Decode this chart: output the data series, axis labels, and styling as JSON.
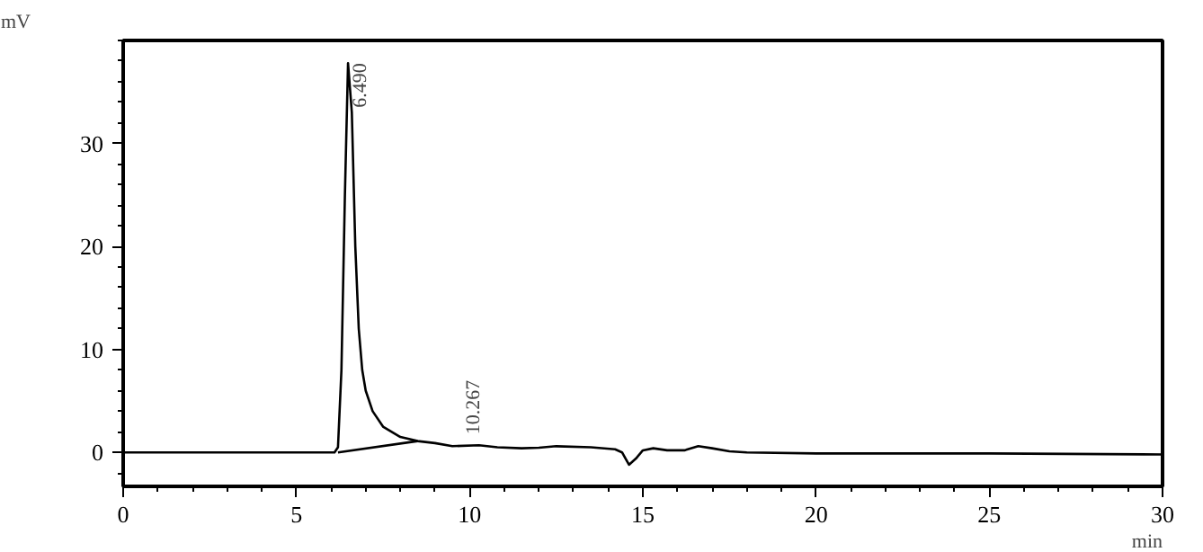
{
  "chart_data": {
    "type": "line",
    "xlabel": "min",
    "ylabel": "mV",
    "xlim": [
      0,
      30
    ],
    "ylim": [
      -3.3,
      40
    ],
    "xticks": [
      0,
      5,
      10,
      15,
      20,
      25,
      30
    ],
    "yticks": [
      0,
      10,
      20,
      30
    ],
    "grid": false,
    "marker": "none",
    "line_style": "solid",
    "series": [
      {
        "color": "#000000",
        "x": [
          0,
          2.5,
          5,
          6.1,
          6.2,
          6.3,
          6.4,
          6.49,
          6.6,
          6.7,
          6.8,
          6.9,
          7.0,
          7.2,
          7.5,
          8.0,
          8.5,
          9.0,
          9.5,
          10.27,
          10.8,
          11.5,
          12,
          12.5,
          13.5,
          14.2,
          14.4,
          14.6,
          14.8,
          15.0,
          15.3,
          15.7,
          16.2,
          16.6,
          17,
          17.5,
          18,
          20,
          25,
          30
        ],
        "values": [
          0,
          0,
          0,
          0,
          0.5,
          8,
          25,
          37.8,
          33,
          20,
          12,
          8,
          6,
          4,
          2.5,
          1.5,
          1.1,
          0.9,
          0.6,
          0.7,
          0.5,
          0.4,
          0.45,
          0.6,
          0.5,
          0.3,
          0,
          -1.2,
          -0.6,
          0.2,
          0.4,
          0.2,
          0.2,
          0.6,
          0.4,
          0.1,
          0,
          -0.1,
          -0.1,
          -0.2
        ]
      },
      {
        "color": "#000000",
        "x": [
          6.2,
          8.5
        ],
        "values": [
          0,
          1.1
        ]
      }
    ],
    "annotations": [
      {
        "text": "6.490",
        "x": 6.49,
        "y": 37.8
      },
      {
        "text": "10.267",
        "x": 10.267,
        "y": 0.7
      }
    ]
  }
}
